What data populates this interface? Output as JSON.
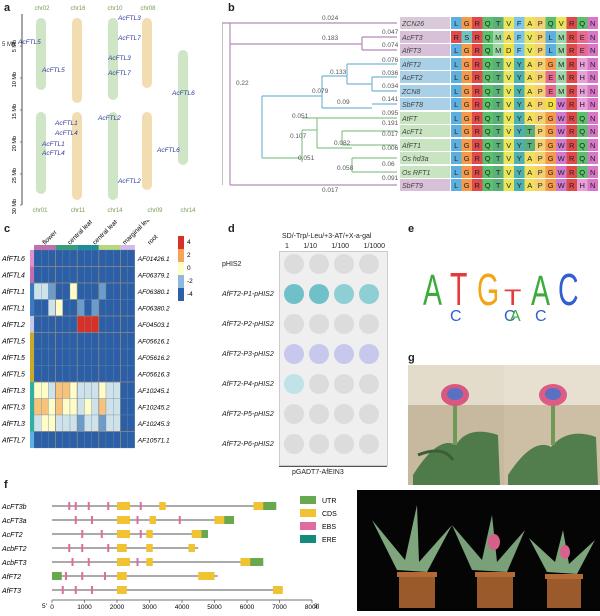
{
  "panels": {
    "a": "a",
    "b": "b",
    "c": "c",
    "d": "d",
    "e": "e",
    "f": "f",
    "g": "g"
  },
  "panel_a": {
    "chr_top": [
      "chr02",
      "chr16",
      "chr10",
      "chr08"
    ],
    "chr_bottom": [
      "chr01",
      "chr11",
      "chr14",
      "chr09",
      "chr14"
    ],
    "y_axis_label": "Mb",
    "y_ticks": [
      "5 Mb",
      "10 Mb",
      "15 Mb",
      "20 Mb",
      "25 Mb",
      "30 Mb"
    ],
    "genes": [
      "AcFTL5",
      "AcFTL5",
      "AcFTL3",
      "AcFTL7",
      "AcFTL3",
      "AcFTL7",
      "AcFTL6",
      "AcFTL1",
      "AcFTL4",
      "AcFTL1",
      "AcFTL4",
      "AcFTL2",
      "AcFTL2",
      "AcFTL6"
    ]
  },
  "panel_b": {
    "scale_labels": [
      "0.024",
      "0.183",
      "0.047",
      "0.074",
      "0.076",
      "0.036",
      "0.133",
      "0.034",
      "0.079",
      "0.141",
      "0.22",
      "0.051",
      "0.09",
      "0.095",
      "0.191",
      "0.107",
      "0.017",
      "0.082",
      "0.006",
      "0.051",
      "0.06",
      "0.058",
      "0.091",
      "0.017"
    ],
    "taxa": [
      "ZCN26",
      "AcFT3",
      "AfFT3",
      "AfFT2",
      "AcFT2",
      "ZCN8",
      "SbFT8",
      "AtFT",
      "AcFT1",
      "AfFT1",
      "Os_hd3a",
      "Os_RFT1",
      "SbFT9"
    ],
    "sequences": [
      "LGRQTVFAPQVRQN",
      "RSRQMAFVPLMREN",
      "LGRQMDFVPLMREN",
      "LGRQTVYAPGMRHN",
      "LGRQTVYAPEMRHN",
      "LGRQTVYAPEMRHN",
      "LGRQTVYAPDWRHN",
      "LGRQTVYAPGWRQN",
      "LGRQTVYTPGWRQN",
      "LGRQTVYTPGWRQN",
      "LGRQTVYAPGWRQN",
      "LGRQTVYAPGWRQN",
      "LGRQTVYAPGWRHN"
    ]
  },
  "panel_c": {
    "col_headers": [
      "flower",
      "central leaf",
      "central leaf*",
      "marginal leaf",
      "root"
    ],
    "genes": [
      "AfFTL6",
      "AfFTL4",
      "AfFTL1",
      "AfFTL1",
      "AfFTL2",
      "AfFTL5",
      "AfFTL5",
      "AfFTL5",
      "AfFTL3",
      "AfFTL3",
      "AfFTL3",
      "AfFTL7"
    ],
    "accessions": [
      "AF01426.1",
      "AF06379.1",
      "AF06380.1",
      "AF06380.2",
      "AF04503.1",
      "AF05616.1",
      "AF05616.2",
      "AF05616.3",
      "AF10245.1",
      "AF10245.2",
      "AF10245.3",
      "AF10571.1"
    ],
    "colorbar_ticks": [
      "4",
      "2",
      "0",
      "-2",
      "-4"
    ]
  },
  "panel_d": {
    "medium": "SD/-Trp/-Leu/+3-AT/+X-a-gal",
    "dilutions": [
      "1",
      "1/10",
      "1/100",
      "1/1000"
    ],
    "rows": [
      "pHIS2",
      "AfFT2-P1-pHIS2",
      "AfFT2-P2-pHIS2",
      "AfFT2-P3-pHIS2",
      "AfFT2-P4-pHIS2",
      "AfFT2-P5-pHIS2",
      "AfFT2-P6-pHIS2"
    ],
    "bottom_label": "pGADT7-AfEIN3"
  },
  "panel_e": {
    "motif": [
      "A",
      "T",
      "G",
      "T",
      "A",
      "C"
    ],
    "sub": [
      "C",
      "C",
      "A",
      "C"
    ]
  },
  "panel_f": {
    "genes": [
      "AcFT3b",
      "AcFT3a",
      "AcFT2",
      "AcbFT2",
      "AcbFT3",
      "AfFT2",
      "AfFT3"
    ],
    "axis_ticks": [
      "5'",
      "0",
      "1000",
      "2000",
      "3000",
      "4000",
      "5000",
      "6000",
      "7000",
      "8000",
      "3'"
    ],
    "legend": [
      {
        "label": "UTR",
        "color": "#6aa84f"
      },
      {
        "label": "CDS",
        "color": "#f1c232"
      },
      {
        "label": "EBS",
        "color": "#e06c9f"
      },
      {
        "label": "ERE",
        "color": "#168a7a"
      }
    ]
  },
  "colors": {
    "tree_purple": "#b48ab8",
    "tree_green": "#8cc48c",
    "tree_blue": "#78b8d8",
    "heat_high": "#d73027",
    "heat_low": "#2c5fa5",
    "heat_mid": "#fffcc8"
  }
}
